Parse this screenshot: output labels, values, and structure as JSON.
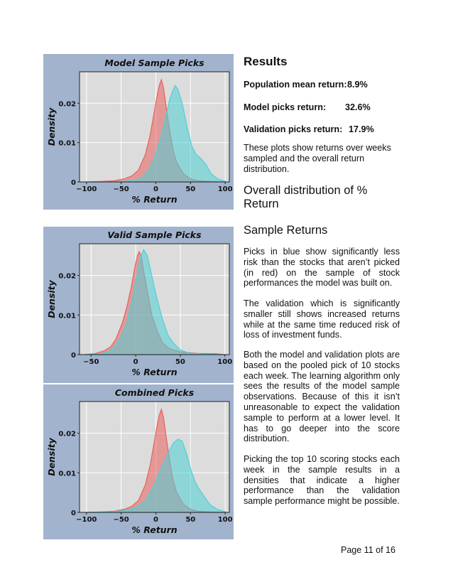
{
  "chart_data": [
    {
      "type": "area",
      "title": "Model Sample Picks",
      "xlabel": "% Return",
      "ylabel": "Density",
      "xlim": [
        -110,
        106
      ],
      "ylim": [
        0,
        0.028
      ],
      "xticks": [
        -100,
        -50,
        0,
        50,
        100
      ],
      "xtick_labels": [
        "−100",
        "−50",
        "0",
        "50",
        "100"
      ],
      "yticks": [
        0,
        0.01,
        0.02
      ],
      "ytick_labels": [
        "0",
        "0.01",
        "0.02"
      ],
      "grid": true,
      "series": [
        {
          "color": "#e8605e",
          "points": [
            [
              -100,
              0
            ],
            [
              -80,
              0.0001
            ],
            [
              -60,
              0.0003
            ],
            [
              -45,
              0.0008
            ],
            [
              -35,
              0.0015
            ],
            [
              -25,
              0.003
            ],
            [
              -15,
              0.007
            ],
            [
              -8,
              0.012
            ],
            [
              -3,
              0.017
            ],
            [
              2,
              0.022
            ],
            [
              5,
              0.0245
            ],
            [
              8,
              0.026
            ],
            [
              11,
              0.024
            ],
            [
              15,
              0.019
            ],
            [
              20,
              0.013
            ],
            [
              25,
              0.008
            ],
            [
              30,
              0.005
            ],
            [
              40,
              0.002
            ],
            [
              50,
              0.0008
            ],
            [
              60,
              0.0003
            ],
            [
              80,
              0.0001
            ],
            [
              100,
              0
            ]
          ]
        },
        {
          "color": "#4fd0d6",
          "points": [
            [
              -100,
              0
            ],
            [
              -50,
              0.0001
            ],
            [
              -30,
              0.0004
            ],
            [
              -20,
              0.001
            ],
            [
              -10,
              0.003
            ],
            [
              0,
              0.007
            ],
            [
              8,
              0.012
            ],
            [
              15,
              0.017
            ],
            [
              20,
              0.021
            ],
            [
              25,
              0.0235
            ],
            [
              28,
              0.0245
            ],
            [
              32,
              0.0235
            ],
            [
              38,
              0.02
            ],
            [
              45,
              0.014
            ],
            [
              52,
              0.009
            ],
            [
              58,
              0.007
            ],
            [
              65,
              0.006
            ],
            [
              72,
              0.0045
            ],
            [
              80,
              0.002
            ],
            [
              90,
              0.0007
            ],
            [
              100,
              0.0002
            ]
          ]
        }
      ]
    },
    {
      "type": "area",
      "title": "Valid Sample Picks",
      "xlabel": "% Return",
      "ylabel": "Density",
      "xlim": [
        -63,
        105
      ],
      "ylim": [
        0,
        0.028
      ],
      "xticks": [
        -50,
        0,
        50,
        100
      ],
      "xtick_labels": [
        "−50",
        "0",
        "50",
        "100"
      ],
      "yticks": [
        0,
        0.01,
        0.02
      ],
      "ytick_labels": [
        "0",
        "0.01",
        "0.02"
      ],
      "grid": true,
      "series": [
        {
          "color": "#e8605e",
          "points": [
            [
              -57,
              0
            ],
            [
              -45,
              0.0003
            ],
            [
              -35,
              0.001
            ],
            [
              -28,
              0.002
            ],
            [
              -22,
              0.004
            ],
            [
              -15,
              0.008
            ],
            [
              -10,
              0.012
            ],
            [
              -5,
              0.017
            ],
            [
              -1,
              0.022
            ],
            [
              2,
              0.025
            ],
            [
              4,
              0.026
            ],
            [
              6,
              0.025
            ],
            [
              9,
              0.021
            ],
            [
              13,
              0.016
            ],
            [
              18,
              0.01
            ],
            [
              24,
              0.006
            ],
            [
              30,
              0.003
            ],
            [
              38,
              0.0015
            ],
            [
              50,
              0.0007
            ],
            [
              70,
              0.0003
            ],
            [
              90,
              0.0002
            ],
            [
              100,
              0
            ]
          ]
        },
        {
          "color": "#4fd0d6",
          "points": [
            [
              -57,
              0
            ],
            [
              -40,
              0.0002
            ],
            [
              -30,
              0.0008
            ],
            [
              -20,
              0.003
            ],
            [
              -10,
              0.008
            ],
            [
              -3,
              0.015
            ],
            [
              2,
              0.021
            ],
            [
              6,
              0.025
            ],
            [
              9,
              0.0265
            ],
            [
              13,
              0.025
            ],
            [
              18,
              0.02
            ],
            [
              24,
              0.014
            ],
            [
              30,
              0.009
            ],
            [
              36,
              0.005
            ],
            [
              42,
              0.003
            ],
            [
              50,
              0.0012
            ],
            [
              60,
              0.0004
            ],
            [
              75,
              0.0001
            ],
            [
              100,
              0
            ]
          ]
        }
      ]
    },
    {
      "type": "area",
      "title": "Combined Picks",
      "xlabel": "% Return",
      "ylabel": "Density",
      "xlim": [
        -110,
        106
      ],
      "ylim": [
        0,
        0.028
      ],
      "xticks": [
        -100,
        -50,
        0,
        50,
        100
      ],
      "xtick_labels": [
        "−100",
        "−50",
        "0",
        "50",
        "100"
      ],
      "yticks": [
        0,
        0.01,
        0.02
      ],
      "ytick_labels": [
        "0",
        "0.01",
        "0.02"
      ],
      "grid": true,
      "series": [
        {
          "color": "#e8605e",
          "points": [
            [
              -100,
              0
            ],
            [
              -80,
              0.0001
            ],
            [
              -60,
              0.0003
            ],
            [
              -45,
              0.0008
            ],
            [
              -35,
              0.0015
            ],
            [
              -25,
              0.003
            ],
            [
              -15,
              0.007
            ],
            [
              -8,
              0.012
            ],
            [
              -3,
              0.017
            ],
            [
              2,
              0.022
            ],
            [
              5,
              0.0245
            ],
            [
              8,
              0.026
            ],
            [
              11,
              0.024
            ],
            [
              15,
              0.019
            ],
            [
              20,
              0.013
            ],
            [
              25,
              0.008
            ],
            [
              30,
              0.005
            ],
            [
              40,
              0.002
            ],
            [
              50,
              0.0008
            ],
            [
              60,
              0.0003
            ],
            [
              80,
              0.0001
            ],
            [
              100,
              0
            ]
          ]
        },
        {
          "color": "#4fd0d6",
          "points": [
            [
              -100,
              0
            ],
            [
              -60,
              0.0002
            ],
            [
              -40,
              0.0006
            ],
            [
              -25,
              0.0015
            ],
            [
              -15,
              0.003
            ],
            [
              -5,
              0.006
            ],
            [
              5,
              0.01
            ],
            [
              15,
              0.014
            ],
            [
              25,
              0.0175
            ],
            [
              32,
              0.0185
            ],
            [
              38,
              0.018
            ],
            [
              44,
              0.015
            ],
            [
              50,
              0.011
            ],
            [
              56,
              0.008
            ],
            [
              62,
              0.006
            ],
            [
              70,
              0.004
            ],
            [
              78,
              0.002
            ],
            [
              88,
              0.0008
            ],
            [
              100,
              0.0002
            ]
          ]
        }
      ]
    }
  ],
  "results": {
    "heading": "Results",
    "population_label": "Population mean return:",
    "population_value": "8.9%",
    "model_label": "Model picks return:",
    "model_value": "32.6%",
    "validation_label": "Validation picks return:",
    "validation_value": "17.9%",
    "intro": "These plots show returns over weeks sampled and the overall return distribution."
  },
  "overall_heading": "Overall distribution of % Return",
  "sample_heading": "Sample Returns",
  "paragraphs": [
    "Picks in blue show significantly less risk than the stocks that aren’t picked (in red) on the sample of stock performances the model was built on.",
    "The validation which is significantly smaller still shows increased returns while at the same time reduced risk of loss of investment funds.",
    "Both the model and validation plots are based on the pooled pick of 10 stocks each week. The learning algorithm only sees the results of the model sample observations.  Because of this it isn’t unreasonable to expect the validation sample to perform at a lower level.  It has to go deeper into the score distribution.",
    "Picking the top 10 scoring stocks each week in the sample results in a densities that indicate a higher performance than the validation sample performance might be possible."
  ],
  "footer": "Page 11 of 16"
}
